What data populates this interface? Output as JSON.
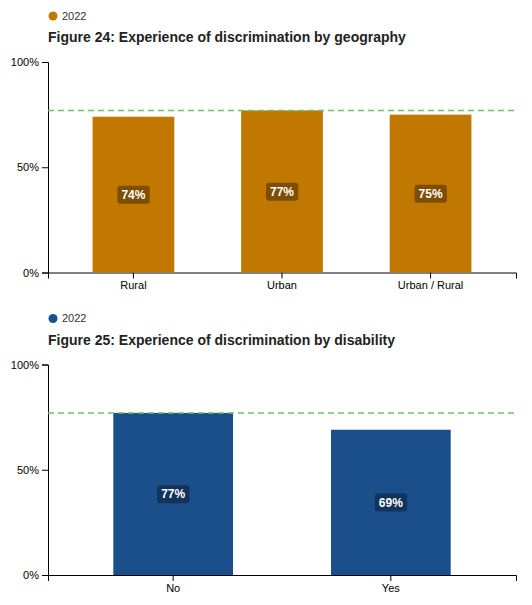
{
  "chart_data": [
    {
      "type": "bar",
      "title": "Figure 24: Experience of discrimination by geography",
      "categories": [
        "Rural",
        "Urban",
        "Urban / Rural"
      ],
      "series": [
        {
          "name": "2022",
          "color": "#C07800",
          "values": [
            74,
            77,
            75
          ],
          "value_labels": [
            "74%",
            "77%",
            "75%"
          ]
        }
      ],
      "ylim": [
        0,
        100
      ],
      "yticks": [
        {
          "value": 0,
          "label": "0%"
        },
        {
          "value": 50,
          "label": "50%"
        },
        {
          "value": 100,
          "label": "100%"
        }
      ],
      "grid": false,
      "legend": "top-left",
      "data_labels": true,
      "reference_line": {
        "value": 77,
        "color": "#6DC066"
      }
    },
    {
      "type": "bar",
      "title": "Figure 25: Experience of discrimination by disability",
      "categories": [
        "No",
        "Yes"
      ],
      "series": [
        {
          "name": "2022",
          "color": "#1B4F8C",
          "values": [
            77,
            69
          ],
          "value_labels": [
            "77%",
            "69%"
          ]
        }
      ],
      "ylim": [
        0,
        100
      ],
      "yticks": [
        {
          "value": 0,
          "label": "0%"
        },
        {
          "value": 50,
          "label": "50%"
        },
        {
          "value": 100,
          "label": "100%"
        }
      ],
      "grid": false,
      "legend": "top-left",
      "data_labels": true,
      "reference_line": {
        "value": 77,
        "color": "#6DC066"
      }
    }
  ]
}
